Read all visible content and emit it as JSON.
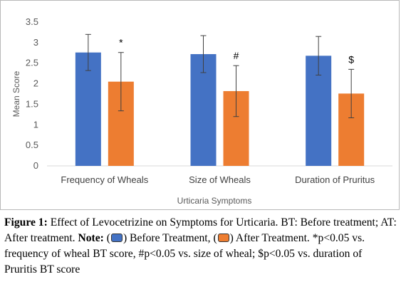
{
  "chart_data": {
    "type": "bar",
    "categories": [
      "Frequency of Wheals",
      "Size of Wheals",
      "Duration of Pruritus"
    ],
    "series": [
      {
        "name": "Before Treatment",
        "color": "#4472C4",
        "values": [
          2.76,
          2.72,
          2.68
        ],
        "errors": [
          0.44,
          0.45,
          0.47
        ]
      },
      {
        "name": "After Treatment",
        "color": "#ED7D31",
        "values": [
          2.05,
          1.82,
          1.76
        ],
        "errors": [
          0.71,
          0.62,
          0.59
        ]
      }
    ],
    "significance_markers": [
      "*",
      "#",
      "$"
    ],
    "xlabel": "Urticaria Symptoms",
    "ylabel": "Mean Score",
    "ylim": [
      0,
      3.5
    ],
    "yticks": [
      "0",
      "0.5",
      "1",
      "1.5",
      "2",
      "2.5",
      "3",
      "3.5"
    ],
    "grid": false,
    "legend": "none"
  },
  "caption": {
    "figure_label": "Figure 1:",
    "title": "Effect of Levocetrizine on Symptoms for Urticaria.",
    "bt_def": "BT: Before treatment;",
    "at_def": "AT: After treatment.",
    "note_label": "Note:",
    "before_open": "(",
    "before_close": ") Before Treatment,",
    "after_open": "(",
    "after_close": ") After Treatment.",
    "star_sig": "*p<0.05 vs. frequency of wheal BT score,",
    "hash_sig": "#p<0.05 vs. size of wheal;",
    "dollar_sig": "$p<0.05 vs. duration of Pruritis BT score"
  }
}
